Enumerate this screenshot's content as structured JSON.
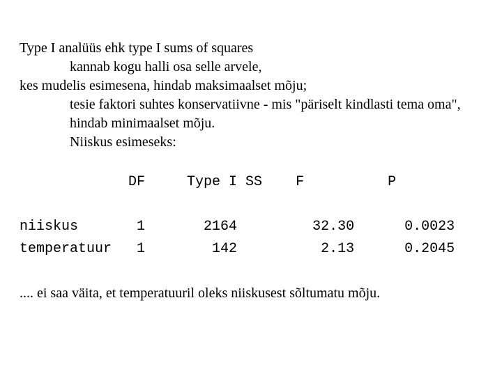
{
  "paragraph": {
    "l1": "Type I analüüs ehk type I sums of squares",
    "l2": "kannab kogu halli osa selle arvele,",
    "l3": "kes mudelis esimesena, hindab maksimaalset mõju;",
    "l4": "tesie faktori suhtes konservatiivne - mis \"päriselt kindlasti tema oma\", hindab minimaalset mõju.",
    "l5": "Niiskus esimeseks:"
  },
  "table": {
    "header": "             DF     Type I SS    F          P",
    "row1": "niiskus       1       2164         32.30      0.0023",
    "row2": "temperatuur   1        142          2.13      0.2045"
  },
  "footer": ".... ei saa väita, et temperatuuril oleks niiskusest sõltumatu mõju."
}
